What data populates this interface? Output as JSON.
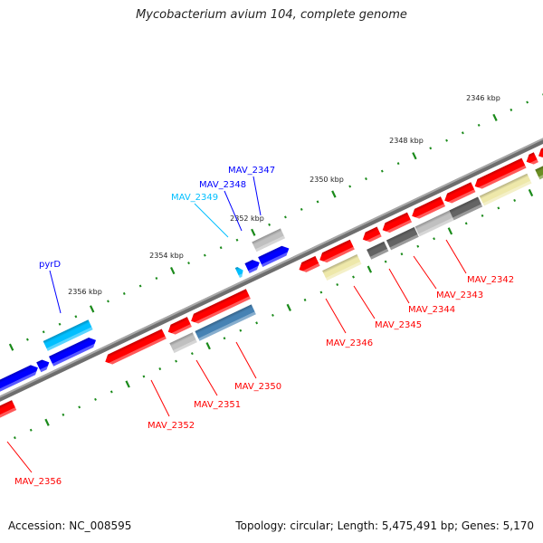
{
  "title": "Mycobacterium avium 104, complete genome",
  "footer": {
    "accession": "Accession: NC_008595",
    "topology": "Topology: circular; Length: 5,475,491 bp; Genes: 5,170"
  },
  "colors": {
    "backbone": "#808080",
    "tick": "#1a8a1a",
    "red": "#ff0000",
    "blue": "#0000ff",
    "cyan": "#00bfff",
    "steelblue": "#4682b4",
    "khaki": "#eee8aa",
    "lightgray": "#c0c0c0",
    "darkgray": "#646464",
    "olive": "#6b8e23"
  },
  "axis": {
    "unit": "kbp",
    "major_step_kbp": 2,
    "minor_step_kbp": 0.4,
    "labels": [
      {
        "kbp": 2346,
        "text": "2346 kbp"
      },
      {
        "kbp": 2348,
        "text": "2348 kbp"
      },
      {
        "kbp": 2350,
        "text": "2350 kbp"
      },
      {
        "kbp": 2352,
        "text": "2352 kbp"
      },
      {
        "kbp": 2354,
        "text": "2354 kbp"
      },
      {
        "kbp": 2356,
        "text": "2356 kbp"
      }
    ]
  },
  "features": [
    {
      "track": "forward",
      "color": "blue",
      "start": 2357.66,
      "end": 2358.67,
      "dir": 1
    },
    {
      "track": "forward",
      "color": "blue",
      "start": 2357.38,
      "end": 2357.64,
      "dir": 1
    },
    {
      "track": "forward",
      "color": "blue",
      "start": 2356.22,
      "end": 2357.33,
      "dir": 1,
      "label": "pyrD"
    },
    {
      "track": "forward-outer",
      "color": "cyan",
      "start": 2356.18,
      "end": 2357.3,
      "dir": 0
    },
    {
      "track": "forward",
      "color": "cyan",
      "start": 2352.57,
      "end": 2352.71,
      "dir": 1,
      "label": "MAV_2349"
    },
    {
      "track": "forward",
      "color": "blue",
      "start": 2352.16,
      "end": 2352.47,
      "dir": 1,
      "label": "MAV_2348"
    },
    {
      "track": "forward",
      "color": "blue",
      "start": 2351.43,
      "end": 2352.14,
      "dir": 1,
      "label": "MAV_2347"
    },
    {
      "track": "forward-outer",
      "color": "lightgray",
      "start": 2351.41,
      "end": 2352.12,
      "dir": 0
    },
    {
      "track": "reverse",
      "color": "red",
      "start": 2354.78,
      "end": 2356.24,
      "dir": -1,
      "label": "MAV_2352"
    },
    {
      "track": "reverse",
      "color": "red",
      "start": 2354.15,
      "end": 2354.68,
      "dir": -1,
      "label": "MAV_2351"
    },
    {
      "track": "reverse",
      "color": "red",
      "start": 2352.69,
      "end": 2354.11,
      "dir": -1,
      "label": "MAV_2350"
    },
    {
      "track": "reverse",
      "color": "red",
      "start": 2350.97,
      "end": 2351.43,
      "dir": -1,
      "label": "MAV_2346"
    },
    {
      "track": "reverse",
      "color": "red",
      "start": 2350.11,
      "end": 2350.92,
      "dir": -1,
      "label": "MAV_2345"
    },
    {
      "track": "reverse",
      "color": "red",
      "start": 2349.44,
      "end": 2349.85,
      "dir": -1,
      "label": "MAV_2344"
    },
    {
      "track": "reverse",
      "color": "red",
      "start": 2348.69,
      "end": 2349.36,
      "dir": -1,
      "label": "MAV_2343"
    },
    {
      "track": "reverse",
      "color": "red",
      "start": 2347.86,
      "end": 2348.63,
      "dir": -1,
      "label": "MAV_2342"
    },
    {
      "track": "reverse",
      "color": "red",
      "start": 2347.11,
      "end": 2347.82,
      "dir": -1
    },
    {
      "track": "reverse",
      "color": "red",
      "start": 2345.85,
      "end": 2347.07,
      "dir": -1
    },
    {
      "track": "reverse",
      "color": "red",
      "start": 2345.55,
      "end": 2345.79,
      "dir": -1
    },
    {
      "track": "reverse",
      "color": "red",
      "start": 2344.88,
      "end": 2345.49,
      "dir": -1
    },
    {
      "track": "reverse",
      "color": "red",
      "start": 2358.5,
      "end": 2359.6,
      "dir": -1,
      "label": "MAV_2356"
    },
    {
      "track": "reverse-outer",
      "color": "lightgray",
      "start": 2354.19,
      "end": 2354.76,
      "dir": 0
    },
    {
      "track": "reverse-outer",
      "color": "steelblue",
      "start": 2352.73,
      "end": 2354.13,
      "dir": 0
    },
    {
      "track": "reverse-outer",
      "color": "khaki",
      "start": 2350.11,
      "end": 2350.97,
      "dir": 0
    },
    {
      "track": "reverse-outer",
      "color": "darkgray",
      "start": 2349.44,
      "end": 2349.87,
      "dir": 0
    },
    {
      "track": "reverse-outer",
      "color": "darkgray",
      "start": 2348.69,
      "end": 2349.38,
      "dir": 0
    },
    {
      "track": "reverse-outer",
      "color": "lightgray",
      "start": 2347.82,
      "end": 2348.67,
      "dir": 0
    },
    {
      "track": "reverse-outer",
      "color": "darkgray",
      "start": 2347.11,
      "end": 2347.82,
      "dir": 0
    },
    {
      "track": "reverse-outer",
      "color": "khaki",
      "start": 2345.89,
      "end": 2347.07,
      "dir": 0
    },
    {
      "track": "reverse-outer",
      "color": "olive",
      "start": 2345.08,
      "end": 2345.69,
      "dir": 0
    }
  ]
}
